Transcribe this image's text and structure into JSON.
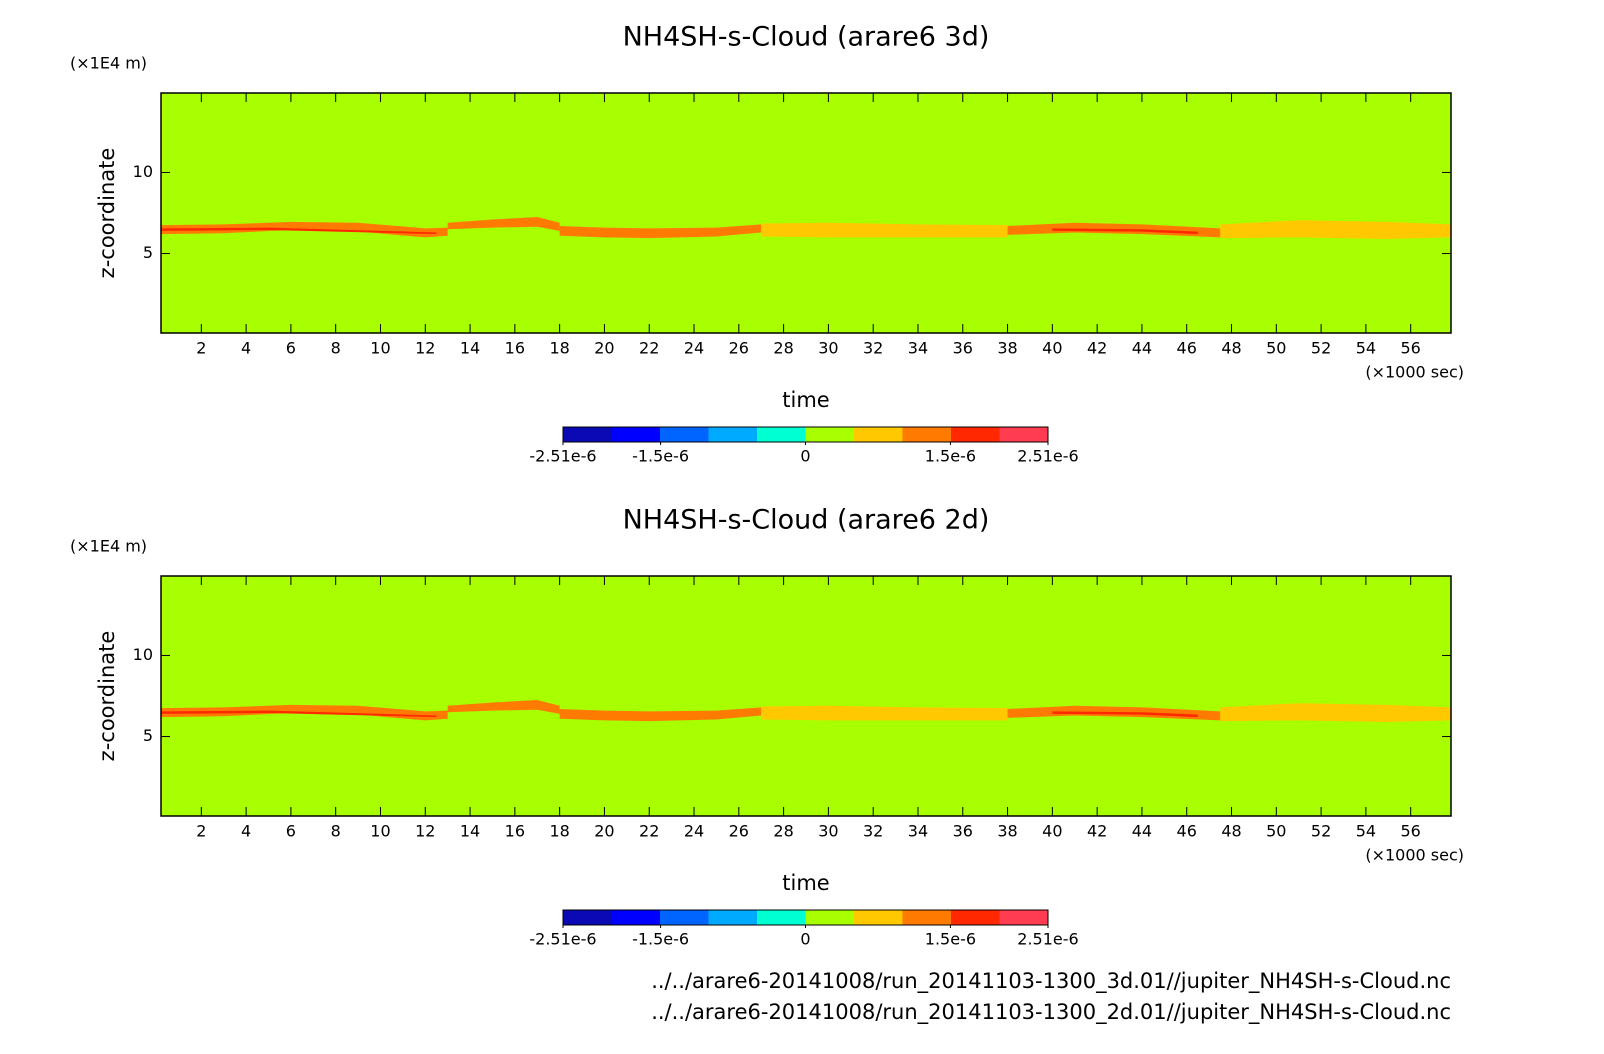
{
  "chart_data": [
    {
      "type": "contour",
      "title": "NH4SH-s-Cloud (arare6 3d)",
      "y_unit": "(×1E4 m)",
      "x_unit": "(×1000 sec)",
      "xlabel": "time",
      "ylabel": "z-coordinate",
      "xlim": [
        0.2,
        57.8
      ],
      "xticks": [
        2,
        4,
        6,
        8,
        10,
        12,
        14,
        16,
        18,
        20,
        22,
        24,
        26,
        28,
        30,
        32,
        34,
        36,
        38,
        40,
        42,
        44,
        46,
        48,
        50,
        52,
        54,
        56
      ],
      "ylim": [
        0.1,
        14.9
      ],
      "yticks": [
        5,
        10
      ],
      "background": "#a8ff00",
      "bands": [
        {
          "color": "#ff7a00",
          "x": [
            0.2,
            3,
            6,
            9,
            12,
            13
          ],
          "low": [
            6.2,
            6.25,
            6.45,
            6.35,
            6.0,
            6.1
          ],
          "high": [
            6.75,
            6.8,
            6.95,
            6.9,
            6.55,
            6.6
          ]
        },
        {
          "color": "#ff7a00",
          "x": [
            13,
            15,
            17,
            18
          ],
          "low": [
            6.5,
            6.6,
            6.65,
            6.4
          ],
          "high": [
            6.9,
            7.1,
            7.25,
            6.9
          ]
        },
        {
          "color": "#ff7a00",
          "x": [
            18,
            20,
            22,
            25,
            27
          ],
          "low": [
            6.1,
            6.0,
            5.95,
            6.05,
            6.3
          ],
          "high": [
            6.7,
            6.6,
            6.55,
            6.6,
            6.8
          ]
        },
        {
          "color": "#ffc800",
          "x": [
            27,
            30,
            34,
            38
          ],
          "low": [
            6.05,
            6.0,
            6.0,
            6.0
          ],
          "high": [
            6.85,
            6.9,
            6.8,
            6.75
          ]
        },
        {
          "color": "#ff7a00",
          "x": [
            38,
            41,
            44,
            47.5
          ],
          "low": [
            6.15,
            6.3,
            6.2,
            6.0
          ],
          "high": [
            6.7,
            6.9,
            6.8,
            6.55
          ]
        },
        {
          "color": "#ffc800",
          "x": [
            47.5,
            51,
            55,
            57.8
          ],
          "low": [
            5.95,
            6.0,
            5.9,
            6.0
          ],
          "high": [
            6.8,
            7.05,
            6.95,
            6.8
          ]
        },
        {
          "color": "#ff2800",
          "x": [
            0.2,
            5,
            12.5
          ],
          "low": [
            6.4,
            6.45,
            6.2
          ],
          "high": [
            6.55,
            6.6,
            6.3
          ]
        },
        {
          "color": "#ff2800",
          "x": [
            40,
            44,
            46.5
          ],
          "low": [
            6.4,
            6.35,
            6.2
          ],
          "high": [
            6.55,
            6.5,
            6.35
          ]
        }
      ],
      "colorbar": {
        "colors": [
          "#0a0ab4",
          "#0000ff",
          "#0064ff",
          "#00aaff",
          "#00ffd2",
          "#a8ff00",
          "#ffc800",
          "#ff7a00",
          "#ff2800",
          "#ff3c50"
        ],
        "lim": [
          -2.51e-06,
          2.51e-06
        ],
        "ticks": [
          {
            "value": -2.51e-06,
            "label": "-2.51e-6"
          },
          {
            "value": -1.5e-06,
            "label": "-1.5e-6"
          },
          0,
          {
            "value": 1.5e-06,
            "label": "1.5e-6"
          },
          {
            "value": 2.51e-06,
            "label": "2.51e-6"
          }
        ]
      }
    },
    {
      "type": "contour",
      "title": "NH4SH-s-Cloud (arare6 2d)",
      "y_unit": "(×1E4 m)",
      "x_unit": "(×1000 sec)",
      "xlabel": "time",
      "ylabel": "z-coordinate",
      "xlim": [
        0.2,
        57.8
      ],
      "xticks": [
        2,
        4,
        6,
        8,
        10,
        12,
        14,
        16,
        18,
        20,
        22,
        24,
        26,
        28,
        30,
        32,
        34,
        36,
        38,
        40,
        42,
        44,
        46,
        48,
        50,
        52,
        54,
        56
      ],
      "ylim": [
        0.1,
        14.9
      ],
      "yticks": [
        5,
        10
      ],
      "background": "#a8ff00",
      "bands": [
        {
          "color": "#ff7a00",
          "x": [
            0.2,
            3,
            6,
            9,
            12,
            13
          ],
          "low": [
            6.2,
            6.25,
            6.45,
            6.35,
            6.0,
            6.1
          ],
          "high": [
            6.75,
            6.8,
            6.95,
            6.9,
            6.55,
            6.6
          ]
        },
        {
          "color": "#ff7a00",
          "x": [
            13,
            15,
            17,
            18
          ],
          "low": [
            6.5,
            6.6,
            6.65,
            6.4
          ],
          "high": [
            6.9,
            7.1,
            7.25,
            6.9
          ]
        },
        {
          "color": "#ff7a00",
          "x": [
            18,
            20,
            22,
            25,
            27
          ],
          "low": [
            6.1,
            6.0,
            5.95,
            6.05,
            6.3
          ],
          "high": [
            6.7,
            6.6,
            6.55,
            6.6,
            6.8
          ]
        },
        {
          "color": "#ffc800",
          "x": [
            27,
            30,
            34,
            38
          ],
          "low": [
            6.05,
            6.0,
            6.0,
            6.0
          ],
          "high": [
            6.85,
            6.9,
            6.8,
            6.75
          ]
        },
        {
          "color": "#ff7a00",
          "x": [
            38,
            41,
            44,
            47.5
          ],
          "low": [
            6.15,
            6.3,
            6.2,
            6.0
          ],
          "high": [
            6.7,
            6.9,
            6.8,
            6.55
          ]
        },
        {
          "color": "#ffc800",
          "x": [
            47.5,
            51,
            55,
            57.8
          ],
          "low": [
            5.95,
            6.0,
            5.9,
            6.0
          ],
          "high": [
            6.8,
            7.05,
            6.95,
            6.8
          ]
        },
        {
          "color": "#ff2800",
          "x": [
            0.2,
            5,
            12.5
          ],
          "low": [
            6.4,
            6.45,
            6.2
          ],
          "high": [
            6.55,
            6.6,
            6.3
          ]
        },
        {
          "color": "#ff2800",
          "x": [
            40,
            44,
            46.5
          ],
          "low": [
            6.4,
            6.35,
            6.2
          ],
          "high": [
            6.55,
            6.5,
            6.35
          ]
        }
      ],
      "colorbar": {
        "colors": [
          "#0a0ab4",
          "#0000ff",
          "#0064ff",
          "#00aaff",
          "#00ffd2",
          "#a8ff00",
          "#ffc800",
          "#ff7a00",
          "#ff2800",
          "#ff3c50"
        ],
        "lim": [
          -2.51e-06,
          2.51e-06
        ],
        "ticks": [
          {
            "value": -2.51e-06,
            "label": "-2.51e-6"
          },
          {
            "value": -1.5e-06,
            "label": "-1.5e-6"
          },
          0,
          {
            "value": 1.5e-06,
            "label": "1.5e-6"
          },
          {
            "value": 2.51e-06,
            "label": "2.51e-6"
          }
        ]
      }
    }
  ],
  "footer": [
    "../../arare6-20141008/run_20141103-1300_3d.01//jupiter_NH4SH-s-Cloud.nc",
    "../../arare6-20141008/run_20141103-1300_2d.01//jupiter_NH4SH-s-Cloud.nc"
  ]
}
